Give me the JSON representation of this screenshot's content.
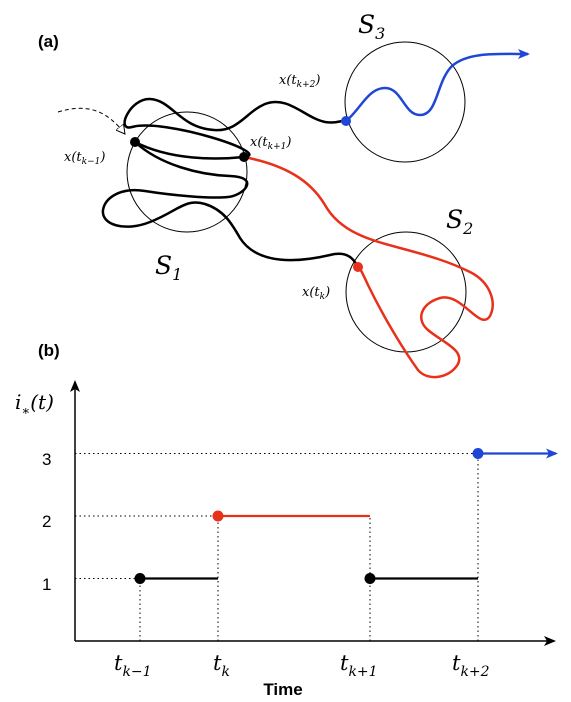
{
  "panel_a": {
    "label": "(a)",
    "sets": [
      {
        "name": "S",
        "sub": "1"
      },
      {
        "name": "S",
        "sub": "2"
      },
      {
        "name": "S",
        "sub": "3"
      }
    ],
    "points": [
      {
        "base": "x(t",
        "sub": "k−1",
        "close": ")"
      },
      {
        "base": "x(t",
        "sub": "k+1",
        "close": ")"
      },
      {
        "base": "x(t",
        "sub": "k+2",
        "close": ")"
      },
      {
        "base": "x(t",
        "sub": "k",
        "close": ")"
      }
    ],
    "colors": {
      "path": "#000000",
      "state2": "#e8301a",
      "state3": "#1f47d6"
    }
  },
  "panel_b": {
    "label": "(b)",
    "ylabel": {
      "base": "i",
      "sub": "∗",
      "rest": "(t)"
    },
    "xlabel": "Time",
    "yticks": [
      "1",
      "2",
      "3"
    ],
    "xticks": [
      {
        "base": "t",
        "sub": "k−1"
      },
      {
        "base": "t",
        "sub": "k"
      },
      {
        "base": "t",
        "sub": "k+1"
      },
      {
        "base": "t",
        "sub": "k+2"
      }
    ]
  },
  "chart_data": {
    "type": "line",
    "xlabel": "Time",
    "ylabel": "i*(t)",
    "x_categories": [
      "t_{k-1}",
      "t_k",
      "t_{k+1}",
      "t_{k+2}"
    ],
    "ylim": [
      0,
      3.5
    ],
    "segments": [
      {
        "x_start": "t_{k-1}",
        "x_end": "t_k",
        "value": 1,
        "color": "#000000"
      },
      {
        "x_start": "t_k",
        "x_end": "t_{k+1}",
        "value": 2,
        "color": "#e8301a"
      },
      {
        "x_start": "t_{k+1}",
        "x_end": "t_{k+2}",
        "value": 1,
        "color": "#000000"
      },
      {
        "x_start": "t_{k+2}",
        "x_end": "arrow",
        "value": 3,
        "color": "#1f47d6"
      }
    ]
  }
}
